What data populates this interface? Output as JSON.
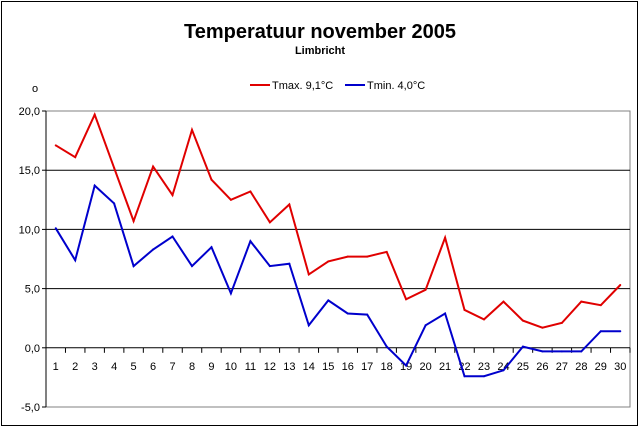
{
  "chart_data": {
    "type": "line",
    "title": "Temperatuur november 2005",
    "subtitle": "Limbricht",
    "ylabel": "o",
    "xlabel": "",
    "ylim": [
      -5,
      20
    ],
    "yticks": [
      20,
      15,
      10,
      5,
      0,
      -5
    ],
    "ytick_labels": [
      "20,0",
      "15,0",
      "10,0",
      "5,0",
      "0,0",
      "-5,0"
    ],
    "categories": [
      "1",
      "2",
      "3",
      "4",
      "5",
      "6",
      "7",
      "8",
      "9",
      "10",
      "11",
      "12",
      "13",
      "14",
      "15",
      "16",
      "17",
      "18",
      "19",
      "20",
      "21",
      "22",
      "23",
      "24",
      "25",
      "26",
      "27",
      "28",
      "29",
      "30"
    ],
    "grid": "horizontal",
    "legend_position": "top-center",
    "series": [
      {
        "name": "Tmax. 9,1°C",
        "color": "#e00000",
        "values": [
          17.1,
          16.1,
          19.7,
          15.2,
          10.7,
          15.3,
          12.9,
          18.4,
          14.2,
          12.5,
          13.2,
          10.6,
          12.1,
          6.2,
          7.3,
          7.7,
          7.7,
          8.1,
          4.1,
          4.9,
          9.3,
          3.2,
          2.4,
          3.9,
          2.3,
          1.7,
          2.1,
          3.9,
          3.6,
          5.3
        ]
      },
      {
        "name": "Tmin. 4,0°C",
        "color": "#0000cc",
        "values": [
          10.1,
          7.4,
          13.7,
          12.2,
          6.9,
          8.3,
          9.4,
          6.9,
          8.5,
          4.6,
          9.0,
          6.9,
          7.1,
          1.9,
          4.0,
          2.9,
          2.8,
          0.1,
          -1.5,
          1.9,
          2.9,
          -2.4,
          -2.4,
          -1.9,
          0.1,
          -0.3,
          -0.3,
          -0.3,
          1.4,
          1.4
        ]
      }
    ]
  }
}
